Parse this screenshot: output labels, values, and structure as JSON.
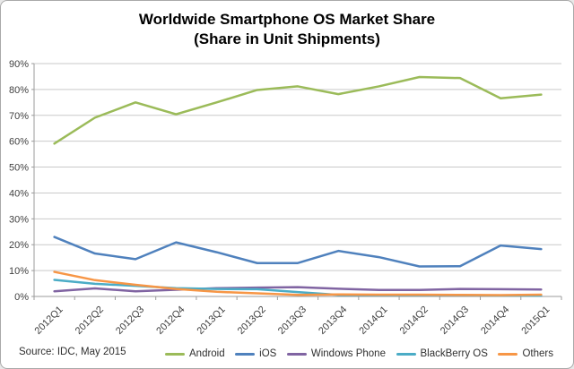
{
  "title": {
    "line1": "Worldwide Smartphone OS Market Share",
    "line2": "(Share in Unit Shipments)"
  },
  "source_note": "Source: IDC, May 2015",
  "chart_data": {
    "type": "line",
    "title": "Worldwide Smartphone OS Market Share",
    "subtitle": "(Share in Unit Shipments)",
    "xlabel": "",
    "ylabel": "",
    "ylim": [
      0,
      90
    ],
    "ytick_step": 10,
    "ytick_suffix": "%",
    "grid": "horizontal",
    "legend_position": "bottom",
    "categories": [
      "2012Q1",
      "2012Q2",
      "2012Q3",
      "2012Q4",
      "2013Q1",
      "2013Q2",
      "2013Q3",
      "2013Q4",
      "2014Q1",
      "2014Q2",
      "2014Q3",
      "2014Q4",
      "2015Q1"
    ],
    "series": [
      {
        "name": "Android",
        "color": "#9BBB59",
        "values": [
          59.1,
          69.1,
          75.0,
          70.4,
          75.0,
          79.8,
          81.2,
          78.2,
          81.2,
          84.8,
          84.4,
          76.6,
          78.0
        ]
      },
      {
        "name": "iOS",
        "color": "#4F81BD",
        "values": [
          23.0,
          16.6,
          14.4,
          20.9,
          17.1,
          12.9,
          12.9,
          17.6,
          15.2,
          11.6,
          11.7,
          19.7,
          18.3
        ]
      },
      {
        "name": "Windows Phone",
        "color": "#8064A2",
        "values": [
          2.0,
          3.1,
          2.0,
          2.6,
          3.2,
          3.4,
          3.6,
          3.0,
          2.5,
          2.5,
          2.9,
          2.8,
          2.7
        ]
      },
      {
        "name": "BlackBerry OS",
        "color": "#4BACC6",
        "values": [
          6.4,
          4.9,
          4.1,
          3.2,
          2.9,
          2.8,
          1.7,
          0.6,
          0.5,
          0.5,
          0.5,
          0.4,
          0.3
        ]
      },
      {
        "name": "Others",
        "color": "#F79646",
        "values": [
          9.5,
          6.3,
          4.5,
          2.9,
          1.8,
          1.2,
          0.6,
          0.8,
          0.7,
          0.7,
          0.6,
          0.5,
          0.7
        ]
      }
    ]
  },
  "colors": {
    "grid": "#C9C9C9",
    "axis": "#9B9B9B",
    "tick_text": "#3f3f3f",
    "border": "#A9A9A9"
  }
}
